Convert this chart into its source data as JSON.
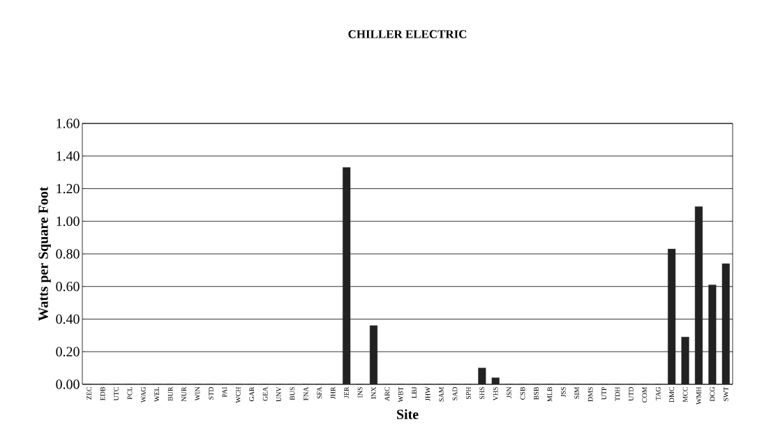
{
  "chart_data": {
    "type": "bar",
    "title": "CHILLER ELECTRIC",
    "xlabel": "Site",
    "ylabel": "Watts per Square Foot",
    "categories": [
      "ZEC",
      "EDB",
      "UTC",
      "PCL",
      "WAG",
      "WEL",
      "BUR",
      "NUR",
      "WIN",
      "STD",
      "PAI",
      "WCH",
      "GAR",
      "GEA",
      "UNV",
      "BUS",
      "FNA",
      "SFA",
      "JHR",
      "JER",
      "INS",
      "INX",
      "ARC",
      "WBT",
      "LBJ",
      "JHW",
      "SAM",
      "SAD",
      "SPH",
      "SHS",
      "VHS",
      "JSN",
      "CSB",
      "BSB",
      "MLB",
      "JSS",
      "SIM",
      "DMS",
      "UTP",
      "TDH",
      "UTD",
      "COM",
      "TAG",
      "DMC",
      "MCC",
      "WMH",
      "DCG",
      "SWT"
    ],
    "values": [
      0,
      0,
      0,
      0,
      0,
      0,
      0,
      0,
      0,
      0,
      0,
      0,
      0,
      0,
      0,
      0,
      0,
      0,
      0,
      1.33,
      0,
      0.36,
      0,
      0,
      0,
      0,
      0,
      0,
      0,
      0.1,
      0.04,
      0,
      0,
      0,
      0,
      0,
      0,
      0,
      0,
      0,
      0,
      0,
      0,
      0.83,
      0.29,
      1.09,
      0.61,
      0.74
    ],
    "color": "#222222",
    "ylim": [
      0,
      1.6
    ],
    "yticks": [
      {
        "value": 0,
        "label": "0.00"
      },
      {
        "value": 0.2,
        "label": "0.20"
      },
      {
        "value": 0.4,
        "label": "0.40"
      },
      {
        "value": 0.6,
        "label": "0.60"
      },
      {
        "value": 0.8,
        "label": "0.80"
      },
      {
        "value": 1.0,
        "label": "1.00"
      },
      {
        "value": 1.2,
        "label": "1.20"
      },
      {
        "value": 1.4,
        "label": "1.40"
      },
      {
        "value": 1.6,
        "label": "1.60"
      }
    ],
    "grid": "y"
  }
}
